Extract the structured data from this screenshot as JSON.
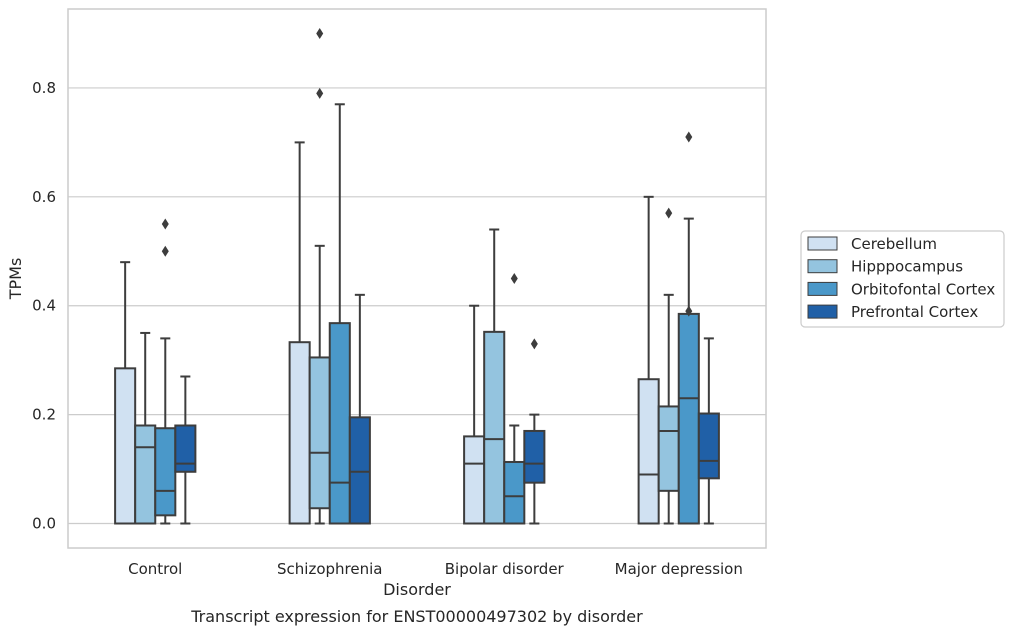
{
  "chart_data": {
    "type": "box",
    "title": "",
    "caption": "Transcript expression for ENST00000497302 by disorder",
    "xlabel": "Disorder",
    "ylabel": "TPMs",
    "ylim": [
      -0.045,
      0.945
    ],
    "yticks": [
      0.0,
      0.2,
      0.4,
      0.6,
      0.8
    ],
    "ytick_labels": [
      "0.0",
      "0.2",
      "0.4",
      "0.6",
      "0.8"
    ],
    "grid": "horizontal",
    "legend_position": "right",
    "categories": [
      "Control",
      "Schizophrenia",
      "Bipolar disorder",
      "Major depression"
    ],
    "series": [
      {
        "name": "Cerebellum",
        "color": "#d0e1f2",
        "boxes": [
          {
            "whisker_low": 0.0,
            "q1": 0.0,
            "median": 0.0,
            "q3": 0.285,
            "whisker_high": 0.48,
            "outliers": []
          },
          {
            "whisker_low": 0.0,
            "q1": 0.0,
            "median": 0.0,
            "q3": 0.333,
            "whisker_high": 0.7,
            "outliers": []
          },
          {
            "whisker_low": 0.0,
            "q1": 0.0,
            "median": 0.11,
            "q3": 0.16,
            "whisker_high": 0.4,
            "outliers": []
          },
          {
            "whisker_low": 0.0,
            "q1": 0.0,
            "median": 0.09,
            "q3": 0.265,
            "whisker_high": 0.6,
            "outliers": []
          }
        ]
      },
      {
        "name": "Hipppocampus",
        "color": "#94c4df",
        "boxes": [
          {
            "whisker_low": 0.0,
            "q1": 0.0,
            "median": 0.14,
            "q3": 0.18,
            "whisker_high": 0.35,
            "outliers": []
          },
          {
            "whisker_low": 0.0,
            "q1": 0.028,
            "median": 0.13,
            "q3": 0.305,
            "whisker_high": 0.51,
            "outliers": [
              0.79,
              0.9
            ]
          },
          {
            "whisker_low": 0.0,
            "q1": 0.0,
            "median": 0.155,
            "q3": 0.352,
            "whisker_high": 0.54,
            "outliers": []
          },
          {
            "whisker_low": 0.0,
            "q1": 0.06,
            "median": 0.17,
            "q3": 0.215,
            "whisker_high": 0.42,
            "outliers": [
              0.57
            ]
          }
        ]
      },
      {
        "name": "Orbitofontal Cortex",
        "color": "#4a98c9",
        "boxes": [
          {
            "whisker_low": 0.0,
            "q1": 0.015,
            "median": 0.06,
            "q3": 0.175,
            "whisker_high": 0.34,
            "outliers": [
              0.5,
              0.55
            ]
          },
          {
            "whisker_low": 0.0,
            "q1": 0.0,
            "median": 0.075,
            "q3": 0.368,
            "whisker_high": 0.77,
            "outliers": []
          },
          {
            "whisker_low": 0.0,
            "q1": 0.0,
            "median": 0.05,
            "q3": 0.113,
            "whisker_high": 0.18,
            "outliers": [
              0.45
            ]
          },
          {
            "whisker_low": 0.0,
            "q1": 0.0,
            "median": 0.23,
            "q3": 0.385,
            "whisker_high": 0.56,
            "outliers": [
              0.39,
              0.71
            ]
          }
        ]
      },
      {
        "name": "Prefrontal Cortex",
        "color": "#2060a7",
        "boxes": [
          {
            "whisker_low": 0.0,
            "q1": 0.095,
            "median": 0.11,
            "q3": 0.18,
            "whisker_high": 0.27,
            "outliers": []
          },
          {
            "whisker_low": 0.0,
            "q1": 0.0,
            "median": 0.095,
            "q3": 0.195,
            "whisker_high": 0.42,
            "outliers": []
          },
          {
            "whisker_low": 0.0,
            "q1": 0.075,
            "median": 0.11,
            "q3": 0.17,
            "whisker_high": 0.2,
            "outliers": [
              0.33
            ]
          },
          {
            "whisker_low": 0.0,
            "q1": 0.083,
            "median": 0.115,
            "q3": 0.202,
            "whisker_high": 0.34,
            "outliers": []
          }
        ]
      }
    ]
  }
}
